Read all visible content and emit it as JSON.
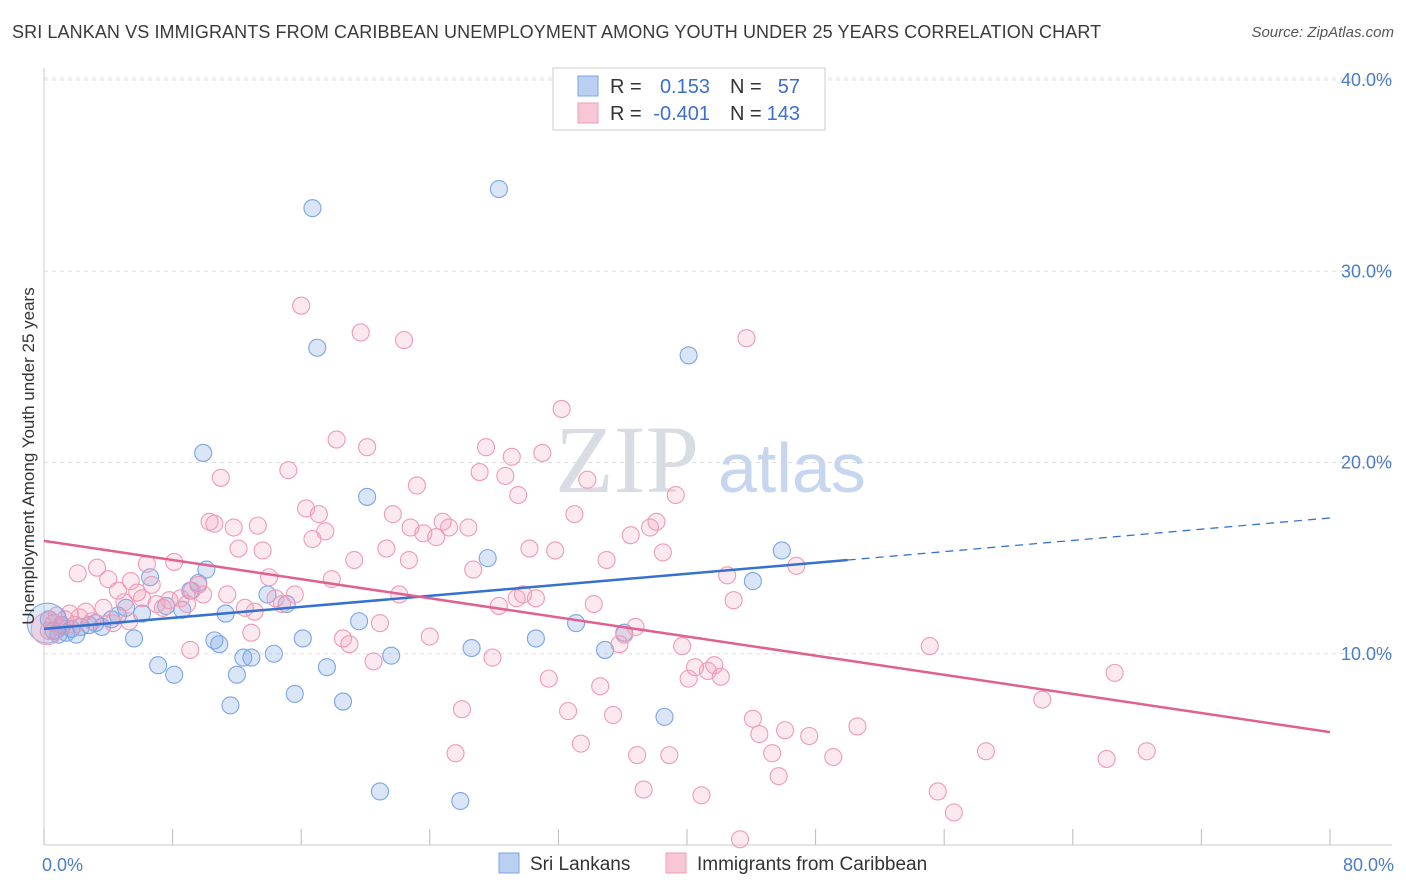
{
  "title": "SRI LANKAN VS IMMIGRANTS FROM CARIBBEAN UNEMPLOYMENT AMONG YOUTH UNDER 25 YEARS CORRELATION CHART",
  "source": "Source: ZipAtlas.com",
  "watermark": {
    "zip": "ZIP",
    "atlas": "atlas"
  },
  "colors": {
    "blue": "#7aa5e6",
    "blue_line": "#3572d0",
    "pink": "#f09ab5",
    "pink_line": "#e06090",
    "tick": "#4a7cc9"
  },
  "legend": {
    "rows": [
      {
        "r_label": "R =",
        "r_value": "0.153",
        "n_label": "N =",
        "n_value": "57"
      },
      {
        "r_label": "R =",
        "r_value": "-0.401",
        "n_label": "N =",
        "n_value": "143"
      }
    ]
  },
  "bottom_legend": [
    "Sri Lankans",
    "Immigrants from Caribbean"
  ],
  "chart_data": {
    "type": "scatter",
    "ylabel": "Unemployment Among Youth under 25 years",
    "x_tick_labels": [
      "0.0%",
      "80.0%"
    ],
    "y_tick_labels": [
      "10.0%",
      "20.0%",
      "30.0%",
      "40.0%"
    ],
    "xlim": [
      0,
      80
    ],
    "ylim": [
      0,
      40
    ],
    "y_ticks": [
      10,
      20,
      30,
      40
    ],
    "x_ticks": [
      0,
      8,
      16,
      24,
      32,
      40,
      48,
      56,
      64,
      72,
      80
    ],
    "grid": true,
    "series": [
      {
        "name": "Sri Lankans",
        "color": "#7aa5e6",
        "points": [
          [
            0.3,
            11.8
          ],
          [
            0.6,
            11.2
          ],
          [
            0.9,
            11.0
          ],
          [
            1.1,
            11.5
          ],
          [
            1.4,
            11.1
          ],
          [
            1.7,
            11.3
          ],
          [
            2.0,
            11.0
          ],
          [
            2.3,
            11.4
          ],
          [
            2.8,
            11.5
          ],
          [
            3.2,
            11.6
          ],
          [
            3.6,
            11.4
          ],
          [
            4.2,
            11.8
          ],
          [
            4.6,
            12.0
          ],
          [
            5.1,
            12.4
          ],
          [
            5.6,
            10.8
          ],
          [
            6.1,
            12.1
          ],
          [
            6.6,
            14.0
          ],
          [
            7.1,
            9.4
          ],
          [
            7.6,
            12.5
          ],
          [
            8.1,
            8.9
          ],
          [
            8.6,
            12.3
          ],
          [
            9.1,
            13.3
          ],
          [
            9.6,
            13.7
          ],
          [
            9.9,
            20.5
          ],
          [
            10.1,
            14.4
          ],
          [
            10.6,
            10.7
          ],
          [
            10.9,
            10.5
          ],
          [
            11.3,
            12.1
          ],
          [
            11.6,
            7.3
          ],
          [
            12.0,
            8.9
          ],
          [
            12.4,
            9.8
          ],
          [
            12.9,
            9.8
          ],
          [
            13.9,
            13.1
          ],
          [
            14.3,
            10.0
          ],
          [
            15.1,
            12.6
          ],
          [
            15.6,
            7.9
          ],
          [
            16.1,
            10.8
          ],
          [
            16.7,
            33.3
          ],
          [
            17.0,
            26.0
          ],
          [
            17.6,
            9.3
          ],
          [
            18.6,
            7.5
          ],
          [
            19.6,
            11.7
          ],
          [
            20.1,
            18.2
          ],
          [
            20.9,
            2.8
          ],
          [
            21.6,
            9.9
          ],
          [
            25.9,
            2.3
          ],
          [
            26.6,
            10.3
          ],
          [
            27.6,
            15.0
          ],
          [
            28.3,
            34.3
          ],
          [
            30.6,
            10.8
          ],
          [
            33.1,
            11.6
          ],
          [
            34.9,
            10.2
          ],
          [
            36.1,
            11.1
          ],
          [
            38.6,
            6.7
          ],
          [
            40.1,
            25.6
          ],
          [
            44.1,
            13.8
          ],
          [
            45.9,
            15.4
          ]
        ]
      },
      {
        "name": "Immigrants from Caribbean",
        "color": "#f09ab5",
        "points": [
          [
            0.3,
            11.2
          ],
          [
            0.6,
            11.6
          ],
          [
            0.8,
            12.0
          ],
          [
            1.0,
            11.4
          ],
          [
            1.3,
            11.8
          ],
          [
            1.6,
            12.1
          ],
          [
            1.9,
            11.5
          ],
          [
            2.2,
            11.9
          ],
          [
            2.6,
            12.2
          ],
          [
            3.0,
            11.7
          ],
          [
            3.3,
            14.5
          ],
          [
            3.7,
            12.4
          ],
          [
            4.0,
            13.9
          ],
          [
            4.3,
            11.6
          ],
          [
            4.6,
            13.3
          ],
          [
            5.0,
            12.7
          ],
          [
            5.4,
            13.8
          ],
          [
            5.8,
            13.2
          ],
          [
            6.1,
            12.9
          ],
          [
            6.4,
            14.7
          ],
          [
            6.7,
            13.6
          ],
          [
            7.0,
            12.6
          ],
          [
            7.4,
            12.4
          ],
          [
            7.8,
            12.8
          ],
          [
            8.1,
            14.8
          ],
          [
            8.5,
            12.9
          ],
          [
            8.9,
            12.6
          ],
          [
            9.2,
            13.3
          ],
          [
            9.6,
            13.6
          ],
          [
            9.9,
            13.1
          ],
          [
            10.3,
            16.9
          ],
          [
            10.6,
            16.8
          ],
          [
            11.0,
            19.2
          ],
          [
            11.4,
            13.1
          ],
          [
            11.8,
            16.6
          ],
          [
            12.1,
            15.5
          ],
          [
            12.5,
            12.4
          ],
          [
            12.9,
            11.1
          ],
          [
            13.3,
            16.7
          ],
          [
            13.6,
            15.4
          ],
          [
            14.0,
            14.0
          ],
          [
            14.4,
            12.9
          ],
          [
            14.8,
            12.6
          ],
          [
            15.2,
            19.6
          ],
          [
            15.6,
            13.1
          ],
          [
            16.0,
            28.2
          ],
          [
            16.3,
            17.6
          ],
          [
            16.7,
            16.0
          ],
          [
            17.1,
            17.3
          ],
          [
            17.5,
            16.4
          ],
          [
            17.9,
            13.9
          ],
          [
            18.2,
            21.2
          ],
          [
            18.6,
            10.8
          ],
          [
            19.0,
            10.5
          ],
          [
            19.3,
            14.9
          ],
          [
            19.7,
            26.8
          ],
          [
            20.1,
            20.8
          ],
          [
            20.5,
            9.6
          ],
          [
            20.9,
            11.6
          ],
          [
            21.3,
            15.5
          ],
          [
            21.7,
            17.3
          ],
          [
            22.1,
            13.1
          ],
          [
            22.4,
            26.4
          ],
          [
            22.8,
            16.6
          ],
          [
            23.2,
            18.8
          ],
          [
            23.6,
            16.3
          ],
          [
            24.0,
            10.9
          ],
          [
            24.4,
            16.1
          ],
          [
            24.8,
            16.9
          ],
          [
            25.2,
            16.6
          ],
          [
            25.6,
            4.8
          ],
          [
            26.0,
            7.1
          ],
          [
            26.4,
            16.6
          ],
          [
            26.7,
            14.4
          ],
          [
            27.1,
            19.5
          ],
          [
            27.5,
            20.8
          ],
          [
            27.9,
            9.8
          ],
          [
            28.3,
            12.5
          ],
          [
            28.7,
            19.3
          ],
          [
            29.1,
            20.3
          ],
          [
            29.5,
            18.3
          ],
          [
            29.8,
            13.1
          ],
          [
            30.2,
            15.5
          ],
          [
            30.6,
            12.9
          ],
          [
            31.0,
            20.5
          ],
          [
            31.4,
            8.7
          ],
          [
            31.8,
            15.4
          ],
          [
            32.2,
            22.8
          ],
          [
            32.6,
            7.0
          ],
          [
            33.0,
            17.3
          ],
          [
            33.4,
            5.3
          ],
          [
            33.8,
            19.1
          ],
          [
            34.2,
            12.6
          ],
          [
            34.6,
            8.3
          ],
          [
            35.0,
            14.9
          ],
          [
            35.4,
            6.8
          ],
          [
            35.8,
            10.5
          ],
          [
            36.1,
            11.0
          ],
          [
            36.5,
            16.2
          ],
          [
            36.9,
            4.7
          ],
          [
            37.3,
            2.9
          ],
          [
            37.7,
            16.6
          ],
          [
            38.1,
            16.9
          ],
          [
            38.5,
            15.3
          ],
          [
            38.9,
            4.7
          ],
          [
            39.3,
            18.3
          ],
          [
            39.7,
            10.4
          ],
          [
            40.1,
            8.7
          ],
          [
            40.5,
            9.3
          ],
          [
            40.9,
            2.6
          ],
          [
            41.3,
            9.1
          ],
          [
            41.7,
            9.4
          ],
          [
            42.1,
            8.8
          ],
          [
            42.5,
            14.1
          ],
          [
            42.9,
            12.8
          ],
          [
            43.3,
            0.3
          ],
          [
            43.7,
            26.5
          ],
          [
            44.1,
            6.6
          ],
          [
            44.5,
            5.8
          ],
          [
            45.3,
            4.8
          ],
          [
            45.7,
            3.6
          ],
          [
            46.1,
            6.0
          ],
          [
            46.8,
            14.6
          ],
          [
            47.6,
            5.7
          ],
          [
            49.1,
            4.6
          ],
          [
            50.6,
            6.2
          ],
          [
            55.1,
            10.4
          ],
          [
            55.6,
            2.8
          ],
          [
            56.6,
            1.7
          ],
          [
            58.6,
            4.9
          ],
          [
            62.1,
            7.6
          ],
          [
            66.1,
            4.5
          ],
          [
            66.6,
            9.0
          ],
          [
            68.6,
            4.9
          ],
          [
            2.1,
            14.2
          ],
          [
            5.3,
            11.7
          ],
          [
            9.1,
            10.2
          ],
          [
            13.1,
            12.2
          ],
          [
            22.7,
            14.9
          ],
          [
            36.8,
            11.4
          ],
          [
            29.4,
            12.9
          ]
        ]
      }
    ],
    "trendlines": [
      {
        "series": "Sri Lankans",
        "solid": [
          [
            0,
            11.3
          ],
          [
            50,
            14.9
          ]
        ],
        "dashed": [
          [
            50,
            14.9
          ],
          [
            80,
            17.1
          ]
        ]
      },
      {
        "series": "Immigrants from Caribbean",
        "solid": [
          [
            0,
            15.9
          ],
          [
            80,
            5.9
          ]
        ]
      }
    ]
  }
}
